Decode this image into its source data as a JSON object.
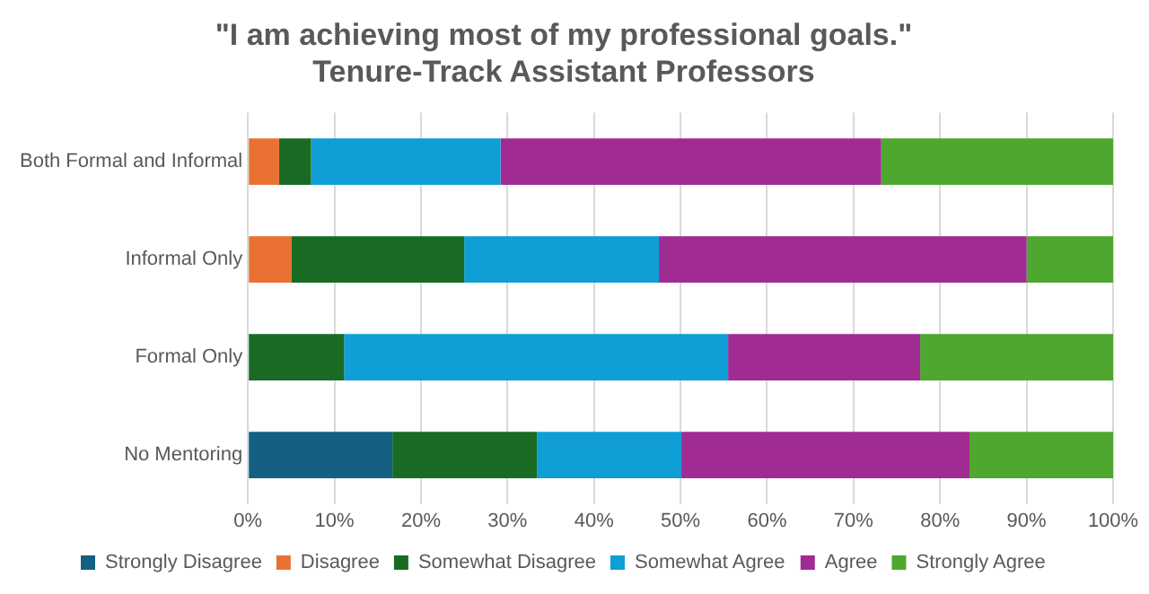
{
  "chart_data": {
    "type": "bar",
    "orientation": "horizontal",
    "stacked": true,
    "title": "\"I am achieving most of my professional goals.\"",
    "subtitle": "Tenure-Track Assistant Professors",
    "categories": [
      "Both Formal and Informal",
      "Informal Only",
      "Formal Only",
      "No Mentoring"
    ],
    "series": [
      {
        "name": "Strongly Disagree",
        "color": "#156082",
        "values": [
          0,
          0,
          0,
          16.7
        ]
      },
      {
        "name": "Disagree",
        "color": "#e97132",
        "values": [
          3.6,
          5,
          0,
          0
        ]
      },
      {
        "name": "Somewhat Disagree",
        "color": "#196b24",
        "values": [
          3.7,
          20,
          11.1,
          16.7
        ]
      },
      {
        "name": "Somewhat Agree",
        "color": "#0f9ed5",
        "values": [
          21.9,
          22.5,
          44.4,
          16.7
        ]
      },
      {
        "name": "Agree",
        "color": "#a02b93",
        "values": [
          44,
          42.5,
          22.2,
          33.3
        ]
      },
      {
        "name": "Strongly Agree",
        "color": "#4ea72e",
        "values": [
          26.8,
          10,
          22.3,
          16.6
        ]
      }
    ],
    "xlim": [
      0,
      100
    ],
    "xticks": [
      {
        "value": 0,
        "label": "0%"
      },
      {
        "value": 10,
        "label": "10%"
      },
      {
        "value": 20,
        "label": "20%"
      },
      {
        "value": 30,
        "label": "30%"
      },
      {
        "value": 40,
        "label": "40%"
      },
      {
        "value": 50,
        "label": "50%"
      },
      {
        "value": 60,
        "label": "60%"
      },
      {
        "value": 70,
        "label": "70%"
      },
      {
        "value": 80,
        "label": "80%"
      },
      {
        "value": 90,
        "label": "90%"
      },
      {
        "value": 100,
        "label": "100%"
      }
    ],
    "grid": "x",
    "legend": "bottom"
  }
}
